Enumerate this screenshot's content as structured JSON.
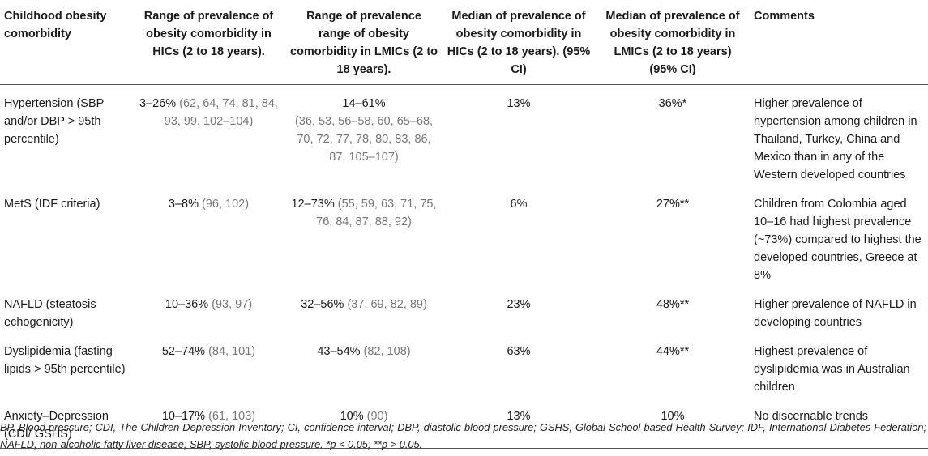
{
  "headers": [
    "Childhood obesity comorbidity",
    "Range of prevalence of obesity comorbidity in HICs (2 to 18 years).",
    "Range of prevalence range of obesity comorbidity in LMICs (2 to 18 years).",
    "Median of prevalence of obesity comorbidity in HICs (2 to 18 years). (95% CI)",
    "Median of prevalence of obesity comorbidity in LMICs (2 to 18 years) (95% CI)",
    "Comments"
  ],
  "rows": [
    {
      "condition": "Hypertension (SBP and/or DBP > 95th percentile)",
      "hic_range": "3–26%",
      "hic_refs": "(62, 64, 74, 81, 84, 93, 99, 102–104)",
      "lmic_range": "14–61%",
      "lmic_refs": "(36, 53, 56–58, 60, 65–68, 70, 72, 77, 78, 80, 83, 86, 87, 105–107)",
      "hic_median": "13%",
      "lmic_median": "36%*",
      "comment": "Higher prevalence of hypertension among children in Thailand, Turkey, China and Mexico than in any of the Western developed countries"
    },
    {
      "condition": "MetS (IDF criteria)",
      "hic_range": "3–8%",
      "hic_refs": "(96, 102)",
      "lmic_range": "12–73%",
      "lmic_refs": "(55, 59, 63, 71, 75, 76, 84, 87, 88, 92)",
      "hic_median": "6%",
      "lmic_median": "27%**",
      "comment": "Children from Colombia aged 10–16 had highest prevalence (~73%) compared to highest the developed countries, Greece at 8%"
    },
    {
      "condition": "NAFLD (steatosis echogenicity)",
      "hic_range": "10–36%",
      "hic_refs": "(93, 97)",
      "lmic_range": "32–56%",
      "lmic_refs": "(37, 69, 82, 89)",
      "hic_median": "23%",
      "lmic_median": "48%**",
      "comment": "Higher prevalence of NAFLD in developing countries"
    },
    {
      "condition": "Dyslipidemia (fasting lipids > 95th percentile)",
      "hic_range": "52–74%",
      "hic_refs": "(84, 101)",
      "lmic_range": "43–54%",
      "lmic_refs": "(82, 108)",
      "hic_median": "63%",
      "lmic_median": "44%**",
      "comment": "Highest prevalence of dyslipidemia was in Australian children"
    },
    {
      "condition": "Anxiety–Depression (CDI/ GSHS)",
      "hic_range": "10–17%",
      "hic_refs": "(61, 103)",
      "lmic_range": "10%",
      "lmic_refs": "(90)",
      "hic_median": "13%",
      "lmic_median": "10%",
      "comment": "No discernable trends"
    }
  ],
  "footnote": "BP, Blood pressure; CDI, The Children Depression Inventory; CI, confidence interval; DBP, diastolic blood pressure; GSHS, Global School-based Health Survey; IDF, International Diabetes Federation; NAFLD, non-alcoholic fatty liver disease; SBP, systolic blood pressure. *p < 0.05; **p > 0.05.",
  "colors": {
    "text": "#1a1a1a",
    "reference": "#777777",
    "rule": "#555555"
  }
}
